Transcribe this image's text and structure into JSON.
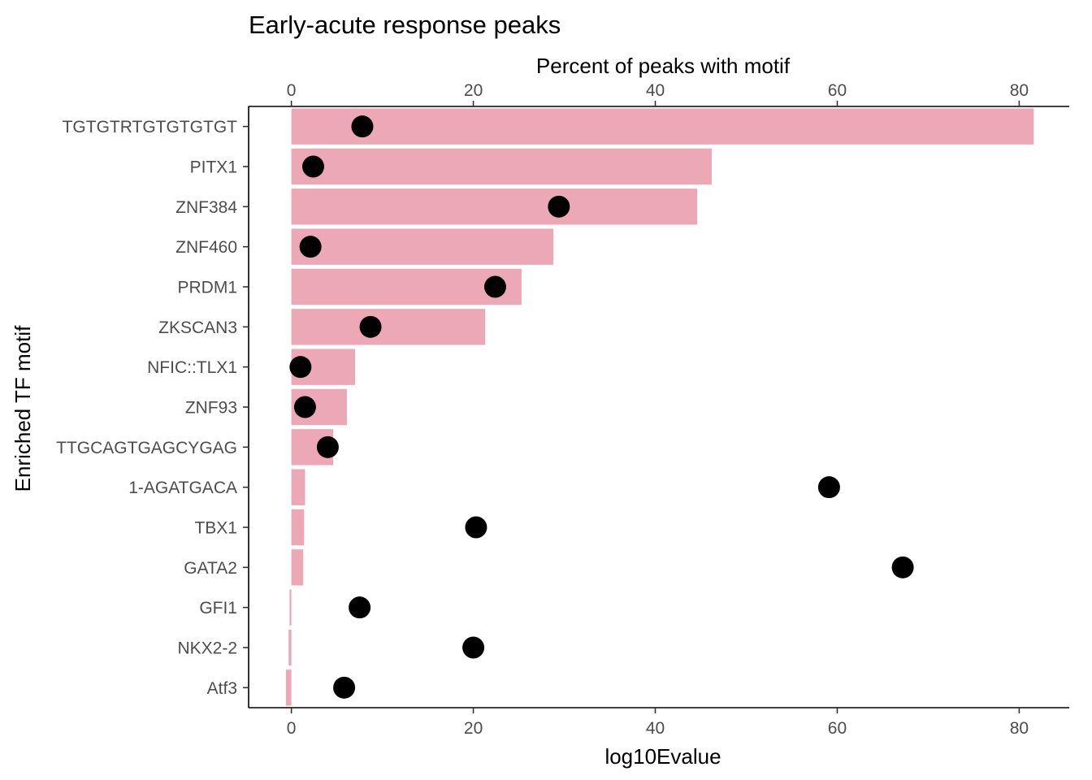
{
  "chart_data": {
    "type": "bar",
    "title": "Early-acute response peaks",
    "xlabel_top": "Percent of peaks with motif",
    "xlabel_bottom": "log10Evalue",
    "ylabel": "Enriched TF motif",
    "xlim": [
      -4.7,
      85.5
    ],
    "xticks": [
      0,
      20,
      40,
      60,
      80
    ],
    "categories": [
      "TGTGTRTGTGTGTGT",
      "PITX1",
      "ZNF384",
      "ZNF460",
      "PRDM1",
      "ZKSCAN3",
      "NFIC::TLX1",
      "ZNF93",
      "TTGCAGTGAGCYGAG",
      "1-AGATGACA",
      "TBX1",
      "GATA2",
      "GFI1",
      "NKX2-2",
      "Atf3"
    ],
    "series": [
      {
        "name": "Percent of peaks with motif",
        "mark": "bar",
        "axis": "top",
        "color": "#eca8b6",
        "values": [
          81.6,
          46.2,
          44.6,
          28.8,
          25.3,
          21.3,
          7.0,
          6.1,
          4.6,
          1.5,
          1.4,
          1.3,
          -0.2,
          -0.3,
          -0.6
        ]
      },
      {
        "name": "log10Evalue",
        "mark": "point",
        "axis": "bottom",
        "color": "#000000",
        "values": [
          7.8,
          2.4,
          29.4,
          2.1,
          22.4,
          8.7,
          1.0,
          1.5,
          4.0,
          59.1,
          20.3,
          67.2,
          7.5,
          20.0,
          5.8
        ]
      }
    ]
  }
}
